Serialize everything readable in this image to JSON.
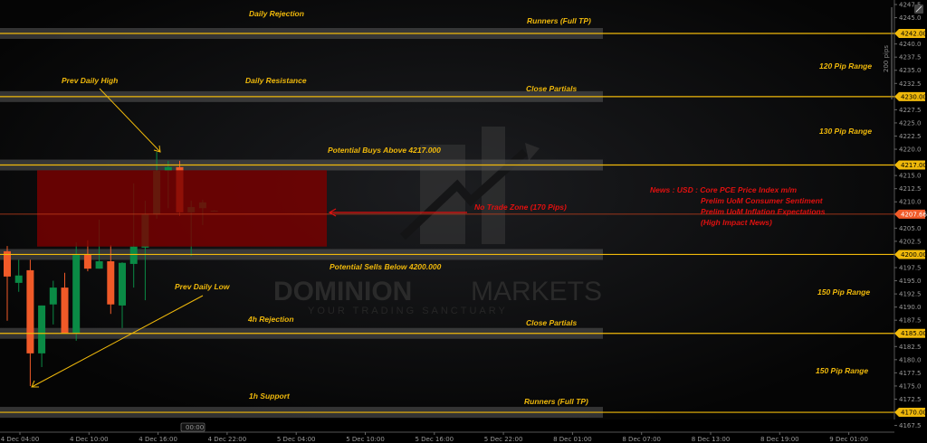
{
  "colors": {
    "level": "#f0b90b",
    "up": "#0a8a45",
    "down": "#f05a28",
    "zone": "#7a0000",
    "current": "#f05a28",
    "news": "#e0100f"
  },
  "watermark": {
    "brand_bold": "DOMINION",
    "brand_light": "MARKETS",
    "tagline": "YOUR TRADING SANCTUARY"
  },
  "chart_data": {
    "type": "candlestick",
    "ylim": [
      4166,
      4248.5
    ],
    "current_price": "4207.66",
    "y_ticks": [
      "4247.5",
      "4245.0",
      "4240.0",
      "4237.5",
      "4235.0",
      "4232.5",
      "4227.5",
      "4225.0",
      "4222.5",
      "4220.0",
      "4215.0",
      "4212.5",
      "4210.0",
      "4205.0",
      "4202.5",
      "4197.5",
      "4195.0",
      "4192.5",
      "4190.0",
      "4187.5",
      "4182.5",
      "4180.0",
      "4177.5",
      "4175.0",
      "4172.5",
      "4167.5"
    ],
    "x_ticks": [
      "4 Dec 04:00",
      "4 Dec 10:00",
      "4 Dec 16:00",
      "4 Dec 22:00",
      "5 Dec 04:00",
      "5 Dec 10:00",
      "5 Dec 16:00",
      "5 Dec 22:00",
      "8 Dec 01:00",
      "8 Dec 07:00",
      "8 Dec 13:00",
      "8 Dec 19:00",
      "9 Dec 01:00"
    ],
    "crosshair_time": "00:00",
    "range_label": "200 pips",
    "levels": [
      {
        "price": "4242.00",
        "band": true
      },
      {
        "price": "4230.00",
        "band": true
      },
      {
        "price": "4217.00",
        "band": true
      },
      {
        "price": "4200.00",
        "band": true
      },
      {
        "price": "4185.00",
        "band": true
      },
      {
        "price": "4170.00",
        "band": true
      }
    ],
    "no_trade_zone": {
      "top": 4216,
      "bottom": 4201.5
    },
    "candles": [
      {
        "o": 4200.6,
        "h": 4201.6,
        "l": 4187.4,
        "c": 4195.8
      },
      {
        "o": 4194.6,
        "h": 4199.0,
        "l": 4192.9,
        "c": 4196.0
      },
      {
        "o": 4197.0,
        "h": 4199.0,
        "l": 4175.0,
        "c": 4181.2
      },
      {
        "o": 4181.2,
        "h": 4190.3,
        "l": 4178.6,
        "c": 4190.3
      },
      {
        "o": 4190.5,
        "h": 4195.0,
        "l": 4186.7,
        "c": 4193.7
      },
      {
        "o": 4193.7,
        "h": 4196.5,
        "l": 4185.0,
        "c": 4185.0
      },
      {
        "o": 4185.0,
        "h": 4202.3,
        "l": 4183.6,
        "c": 4199.9
      },
      {
        "o": 4199.9,
        "h": 4202.7,
        "l": 4196.8,
        "c": 4197.3
      },
      {
        "o": 4197.3,
        "h": 4206.6,
        "l": 4197.3,
        "c": 4198.7
      },
      {
        "o": 4198.7,
        "h": 4201.8,
        "l": 4188.7,
        "c": 4190.5
      },
      {
        "o": 4190.3,
        "h": 4198.5,
        "l": 4186.0,
        "c": 4198.4
      },
      {
        "o": 4198.2,
        "h": 4213.5,
        "l": 4193.7,
        "c": 4201.5
      },
      {
        "o": 4201.3,
        "h": 4210.2,
        "l": 4191.3,
        "c": 4207.6
      },
      {
        "o": 4207.6,
        "h": 4219.5,
        "l": 4206.8,
        "c": 4215.9
      },
      {
        "o": 4215.9,
        "h": 4217.8,
        "l": 4208.8,
        "c": 4216.6
      },
      {
        "o": 4216.6,
        "h": 4217.8,
        "l": 4207.3,
        "c": 4208.0
      },
      {
        "o": 4208.0,
        "h": 4210.2,
        "l": 4199.7,
        "c": 4209.0
      },
      {
        "o": 4208.8,
        "h": 4210.4,
        "l": 4205.6,
        "c": 4209.9
      },
      {
        "o": 4208.3,
        "h": 4208.4,
        "l": 4208.2,
        "c": 4208.3
      }
    ]
  },
  "annotations": {
    "daily_rejection": "Daily Rejection",
    "runners_top": "Runners (Full TP)",
    "prev_daily_high": "Prev Daily High",
    "daily_resistance": "Daily Resistance",
    "close_partials_top": "Close Partials",
    "range_120": "120 Pip Range",
    "range_130": "130 Pip Range",
    "potential_buys": "Potential Buys Above 4217.000",
    "no_trade_zone": "No Trade Zone (170 Pips)",
    "potential_sells": "Potential Sells Below 4200.000",
    "prev_daily_low": "Prev Daily Low",
    "range_150_a": "150 Pip Range",
    "h4_rejection": "4h Rejection",
    "close_partials_bottom": "Close Partials",
    "range_150_b": "150 Pip Range",
    "h1_support": "1h Support",
    "runners_bottom": "Runners (Full TP)"
  },
  "news": {
    "line1": "News : USD : Core PCE Price Index m/m",
    "line2": "Prelim UoM Consumer Sentiment",
    "line3": "Prelim UoM Inflation Expectations",
    "line4": "(High Impact News)"
  }
}
